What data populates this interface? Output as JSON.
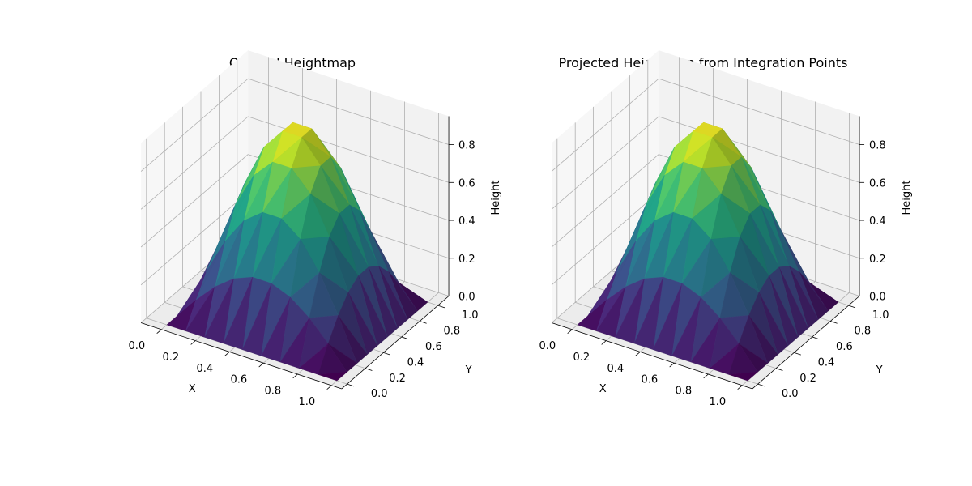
{
  "chart_data": [
    {
      "type": "surface3d",
      "title": "Original Heightmap",
      "xlabel": "X",
      "ylabel": "Y",
      "zlabel": "Height",
      "xlim": [
        0,
        1
      ],
      "ylim": [
        0,
        1
      ],
      "zlim": [
        0,
        0.95
      ],
      "xticks": [
        "0.0",
        "0.2",
        "0.4",
        "0.6",
        "0.8",
        "1.0"
      ],
      "yticks": [
        "0.0",
        "0.2",
        "0.4",
        "0.6",
        "0.8",
        "1.0"
      ],
      "zticks": [
        "0.0",
        "0.2",
        "0.4",
        "0.6",
        "0.8"
      ],
      "grid": true,
      "colormap": "viridis",
      "surface": {
        "function": "sin(pi*x)*sin(pi*y)",
        "grid_size": 10,
        "triangulated": true
      }
    },
    {
      "type": "surface3d",
      "title": "Projected Heightmap from Integration Points",
      "xlabel": "X",
      "ylabel": "Y",
      "zlabel": "Height",
      "xlim": [
        0,
        1
      ],
      "ylim": [
        0,
        1
      ],
      "zlim": [
        0,
        0.95
      ],
      "xticks": [
        "0.0",
        "0.2",
        "0.4",
        "0.6",
        "0.8",
        "1.0"
      ],
      "yticks": [
        "0.0",
        "0.2",
        "0.4",
        "0.6",
        "0.8",
        "1.0"
      ],
      "zticks": [
        "0.0",
        "0.2",
        "0.4",
        "0.6",
        "0.8"
      ],
      "grid": true,
      "colormap": "viridis",
      "surface": {
        "function": "sin(pi*x)*sin(pi*y)",
        "grid_size": 10,
        "triangulated": true
      }
    }
  ],
  "colors": {
    "pane_left": "#f7f7f7",
    "pane_back": "#f2f2f2",
    "pane_floor": "#ececec",
    "grid": "#b0b0b0"
  }
}
